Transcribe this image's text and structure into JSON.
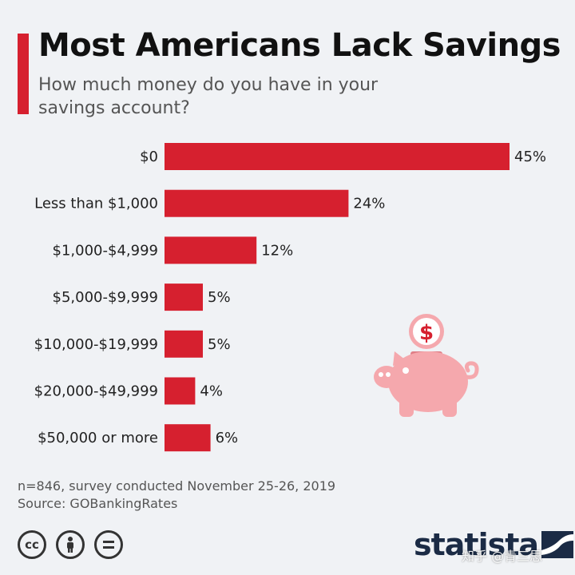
{
  "header": {
    "title": "Most Americans Lack Savings",
    "subtitle": "How much money do you have in your savings account?"
  },
  "chart_data": {
    "type": "bar",
    "orientation": "horizontal",
    "categories": [
      "$0",
      "Less than $1,000",
      "$1,000-$4,999",
      "$5,000-$9,999",
      "$10,000-$19,999",
      "$20,000-$49,999",
      "$50,000 or more"
    ],
    "values": [
      45,
      24,
      12,
      5,
      5,
      4,
      6
    ],
    "value_labels": [
      "45%",
      "24%",
      "12%",
      "5%",
      "5%",
      "4%",
      "6%"
    ],
    "unit": "%",
    "xlim": [
      0,
      45
    ],
    "grid": false,
    "legend": "none",
    "bar_color": "#d6202f",
    "title": "Most Americans Lack Savings",
    "subtitle": "How much money do you have in your savings account?"
  },
  "footer": {
    "note": "n=846, survey conducted November 25-26, 2019",
    "source": "Source: GOBankingRates"
  },
  "license_icons": [
    "creative-commons-icon",
    "attribution-person-icon",
    "no-derivatives-icon"
  ],
  "brand": {
    "name": "statista"
  },
  "watermark": "知乎 @青三思",
  "illustration": {
    "icon": "piggy-bank-icon",
    "coin_symbol": "$"
  },
  "colors": {
    "accent": "#d6202f",
    "piggy": "#f5a8ad",
    "background": "#f0f2f5",
    "brand": "#1b2b45"
  }
}
